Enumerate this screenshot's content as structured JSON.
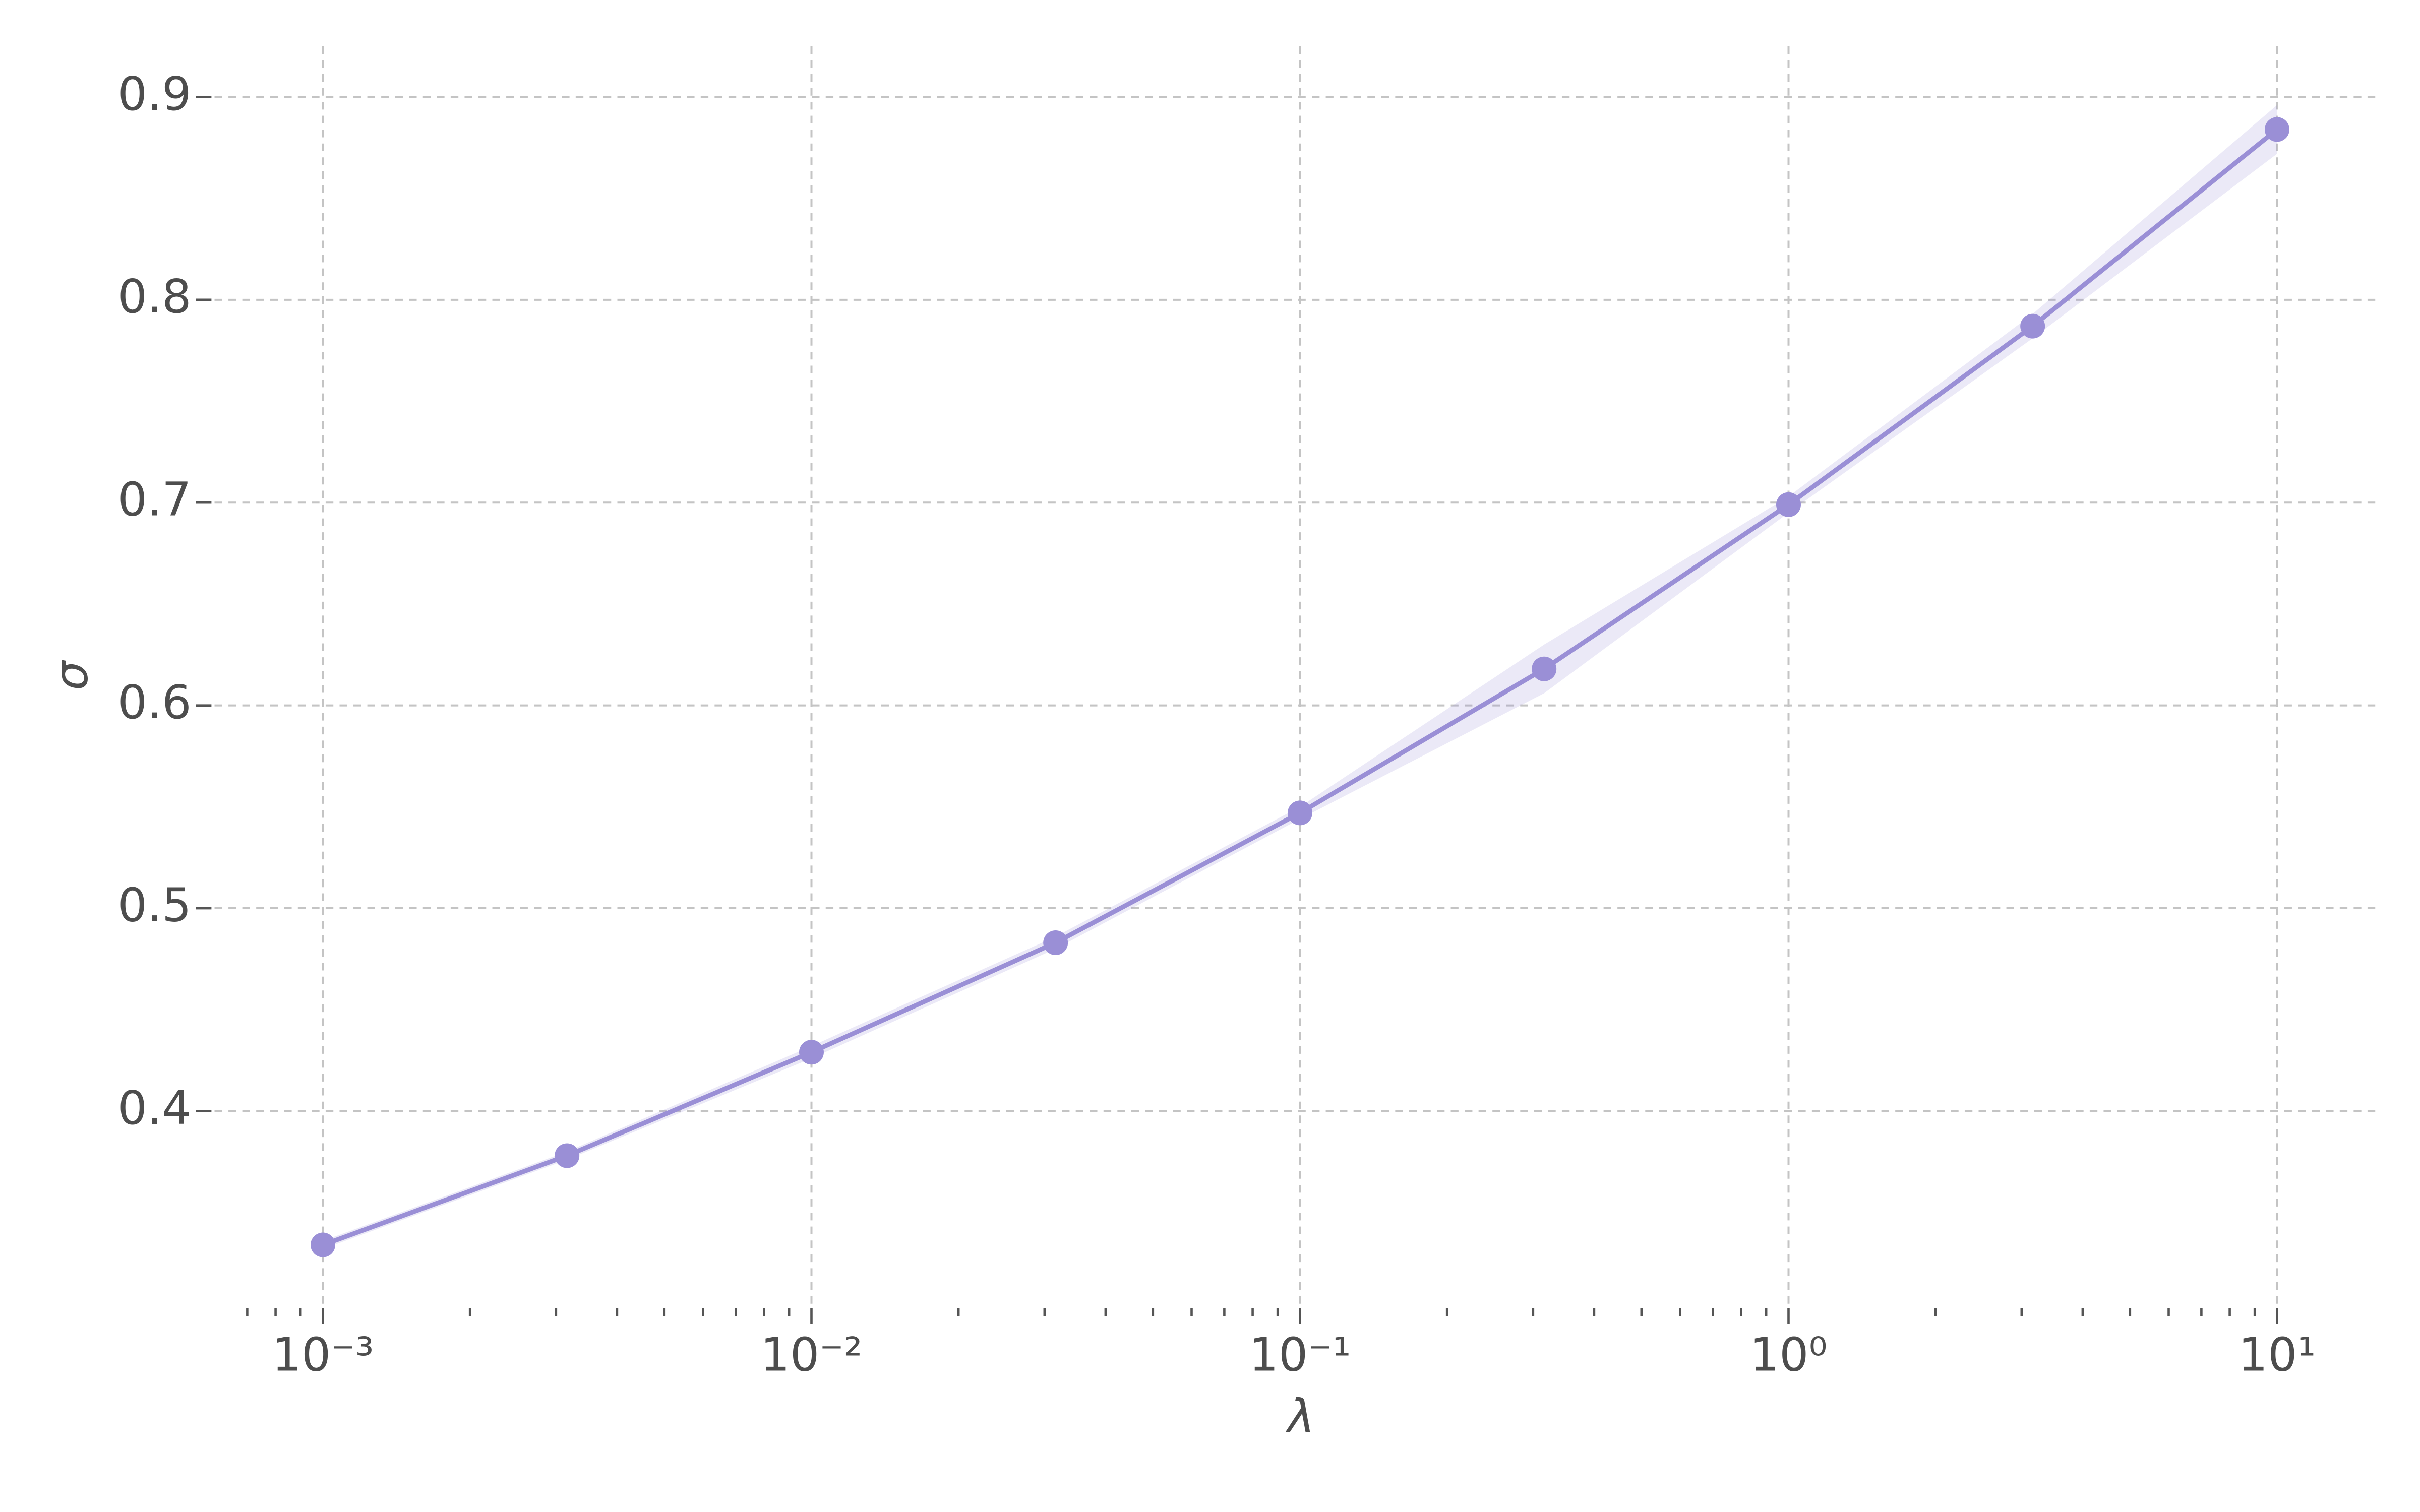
{
  "chart_data": {
    "type": "line",
    "x_label": "λ",
    "y_label": "σ",
    "x": [
      0.001,
      0.00316,
      0.01,
      0.0316,
      0.1,
      0.316,
      1,
      3.16,
      10
    ],
    "series": [
      {
        "color": "#9a8fd6",
        "values": [
          0.334,
          0.378,
          0.429,
          0.483,
          0.547,
          0.618,
          0.699,
          0.787,
          0.884
        ],
        "lower": [
          0.332,
          0.376,
          0.426,
          0.48,
          0.544,
          0.606,
          0.695,
          0.781,
          0.872
        ],
        "upper": [
          0.336,
          0.38,
          0.432,
          0.486,
          0.55,
          0.63,
          0.703,
          0.793,
          0.896
        ]
      }
    ],
    "xlog": true,
    "xlim": [
      0.0006,
      16
    ],
    "ylim": [
      0.305,
      0.925
    ],
    "xticks": [
      {
        "value": 0.001,
        "label": "10⁻³"
      },
      {
        "value": 0.01,
        "label": "10⁻²"
      },
      {
        "value": 0.1,
        "label": "10⁻¹"
      },
      {
        "value": 1,
        "label": "10⁰"
      },
      {
        "value": 10,
        "label": "10¹"
      }
    ],
    "xminorticks": [
      0.0007,
      0.0008,
      0.0009,
      0.002,
      0.003,
      0.004,
      0.005,
      0.006,
      0.007,
      0.008,
      0.009,
      0.02,
      0.03,
      0.04,
      0.05,
      0.06,
      0.07,
      0.08,
      0.09,
      0.2,
      0.3,
      0.4,
      0.5,
      0.6,
      0.7,
      0.8,
      0.9,
      2,
      3,
      4,
      5,
      6,
      7,
      8,
      9
    ],
    "yticks": [
      0.4,
      0.5,
      0.6,
      0.7,
      0.8,
      0.9
    ],
    "grid": true
  }
}
